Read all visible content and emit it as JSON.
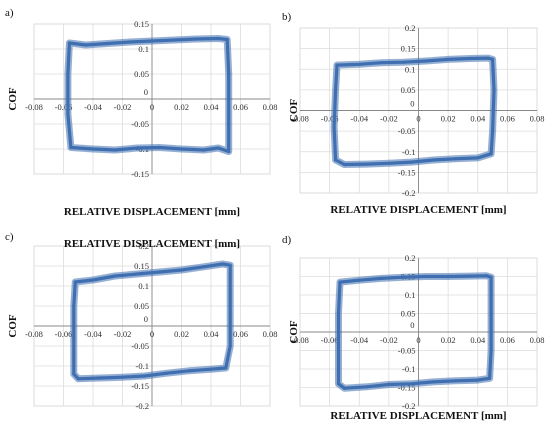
{
  "colors": {
    "series": "#3f6fb0",
    "grid": "#dcdcdc",
    "axis": "#888888"
  },
  "chart_data": [
    {
      "type": "line",
      "panel_label": "a)",
      "xlabel": "RELATIVE DISPLACEMENT [mm]",
      "ylabel": "COF",
      "xlim": [
        -0.08,
        0.08
      ],
      "ylim": [
        -0.15,
        0.15
      ],
      "xticks": [
        "-0.08",
        "-0.06",
        "-0.04",
        "-0.02",
        "0",
        "0.02",
        "0.04",
        "0.06",
        "0.08"
      ],
      "yticks": [
        "-0.15",
        "-0.1",
        "-0.05",
        "0",
        "0.05",
        "0.1",
        "0.15"
      ],
      "grid": true,
      "series": [
        {
          "values": [
            [
              -0.056,
              0.112
            ],
            [
              -0.045,
              0.108
            ],
            [
              -0.03,
              0.111
            ],
            [
              -0.015,
              0.114
            ],
            [
              0.0,
              0.116
            ],
            [
              0.015,
              0.118
            ],
            [
              0.03,
              0.12
            ],
            [
              0.045,
              0.121
            ],
            [
              0.051,
              0.119
            ],
            [
              0.052,
              0.05
            ],
            [
              0.052,
              -0.05
            ],
            [
              0.052,
              -0.105
            ],
            [
              0.045,
              -0.098
            ],
            [
              0.035,
              -0.102
            ],
            [
              0.02,
              -0.1
            ],
            [
              0.005,
              -0.097
            ],
            [
              -0.01,
              -0.098
            ],
            [
              -0.025,
              -0.102
            ],
            [
              -0.04,
              -0.1
            ],
            [
              -0.055,
              -0.097
            ],
            [
              -0.057,
              -0.03
            ],
            [
              -0.057,
              0.05
            ],
            [
              -0.056,
              0.112
            ]
          ]
        }
      ]
    },
    {
      "type": "line",
      "panel_label": "b)",
      "xlabel": "RELATIVE DISPLACEMENT [mm]",
      "ylabel": "COF",
      "xlim": [
        -0.08,
        0.08
      ],
      "ylim": [
        -0.2,
        0.2
      ],
      "xticks": [
        "-0.08",
        "-0.06",
        "-0.04",
        "-0.02",
        "0",
        "0.02",
        "0.04",
        "0.06",
        "0.08"
      ],
      "yticks": [
        "-0.2",
        "-0.15",
        "-0.1",
        "-0.05",
        "0",
        "0.05",
        "0.1",
        "0.15",
        "0.2"
      ],
      "grid": true,
      "series": [
        {
          "values": [
            [
              -0.055,
              0.11
            ],
            [
              -0.04,
              0.112
            ],
            [
              -0.025,
              0.116
            ],
            [
              -0.01,
              0.117
            ],
            [
              0.005,
              0.12
            ],
            [
              0.02,
              0.124
            ],
            [
              0.035,
              0.126
            ],
            [
              0.047,
              0.127
            ],
            [
              0.05,
              0.124
            ],
            [
              0.051,
              0.05
            ],
            [
              0.05,
              -0.05
            ],
            [
              0.049,
              -0.105
            ],
            [
              0.04,
              -0.115
            ],
            [
              0.025,
              -0.117
            ],
            [
              0.01,
              -0.12
            ],
            [
              -0.005,
              -0.125
            ],
            [
              -0.02,
              -0.128
            ],
            [
              -0.035,
              -0.13
            ],
            [
              -0.05,
              -0.131
            ],
            [
              -0.056,
              -0.12
            ],
            [
              -0.057,
              -0.04
            ],
            [
              -0.056,
              0.05
            ],
            [
              -0.055,
              0.11
            ]
          ]
        }
      ]
    },
    {
      "type": "line",
      "panel_label": "c)",
      "xlabel": "RELATIVE DISPLACEMENT [mm]",
      "ylabel": "COF",
      "xlim": [
        -0.08,
        0.08
      ],
      "ylim": [
        -0.2,
        0.2
      ],
      "xticks": [
        "-0.08",
        "-0.06",
        "-0.04",
        "-0.02",
        "0",
        "0.02",
        "0.04",
        "0.06",
        "0.08"
      ],
      "yticks": [
        "-0.2",
        "-0.15",
        "-0.1",
        "-0.05",
        "0",
        "0.05",
        "0.1",
        "0.15",
        "0.2"
      ],
      "grid": true,
      "series": [
        {
          "values": [
            [
              -0.052,
              0.11
            ],
            [
              -0.04,
              0.115
            ],
            [
              -0.025,
              0.125
            ],
            [
              -0.01,
              0.13
            ],
            [
              0.005,
              0.135
            ],
            [
              0.02,
              0.14
            ],
            [
              0.035,
              0.148
            ],
            [
              0.048,
              0.155
            ],
            [
              0.053,
              0.152
            ],
            [
              0.053,
              0.05
            ],
            [
              0.053,
              -0.05
            ],
            [
              0.05,
              -0.105
            ],
            [
              0.04,
              -0.108
            ],
            [
              0.025,
              -0.112
            ],
            [
              0.01,
              -0.118
            ],
            [
              -0.005,
              -0.125
            ],
            [
              -0.02,
              -0.128
            ],
            [
              -0.035,
              -0.13
            ],
            [
              -0.05,
              -0.132
            ],
            [
              -0.053,
              -0.12
            ],
            [
              -0.053,
              -0.03
            ],
            [
              -0.053,
              0.05
            ],
            [
              -0.052,
              0.11
            ]
          ]
        }
      ]
    },
    {
      "type": "line",
      "panel_label": "d)",
      "xlabel": "RELATIVE DISPLACEMENT [mm]",
      "ylabel": "COF",
      "xlim": [
        -0.08,
        0.08
      ],
      "ylim": [
        -0.2,
        0.2
      ],
      "xticks": [
        "-0.08",
        "-0.06",
        "-0.04",
        "-0.02",
        "0",
        "0.02",
        "0.04",
        "0.06",
        "0.08"
      ],
      "yticks": [
        "-0.2",
        "-0.15",
        "-0.1",
        "-0.05",
        "0",
        "0.05",
        "0.1",
        "0.15",
        "0.2"
      ],
      "grid": true,
      "series": [
        {
          "values": [
            [
              -0.053,
              0.135
            ],
            [
              -0.04,
              0.14
            ],
            [
              -0.025,
              0.145
            ],
            [
              -0.01,
              0.148
            ],
            [
              0.005,
              0.15
            ],
            [
              0.02,
              0.15
            ],
            [
              0.035,
              0.151
            ],
            [
              0.046,
              0.152
            ],
            [
              0.049,
              0.148
            ],
            [
              0.049,
              0.05
            ],
            [
              0.049,
              -0.05
            ],
            [
              0.048,
              -0.125
            ],
            [
              0.04,
              -0.13
            ],
            [
              0.025,
              -0.132
            ],
            [
              0.01,
              -0.135
            ],
            [
              -0.005,
              -0.14
            ],
            [
              -0.02,
              -0.142
            ],
            [
              -0.035,
              -0.148
            ],
            [
              -0.05,
              -0.152
            ],
            [
              -0.054,
              -0.14
            ],
            [
              -0.054,
              -0.04
            ],
            [
              -0.054,
              0.05
            ],
            [
              -0.053,
              0.135
            ]
          ]
        }
      ]
    }
  ]
}
